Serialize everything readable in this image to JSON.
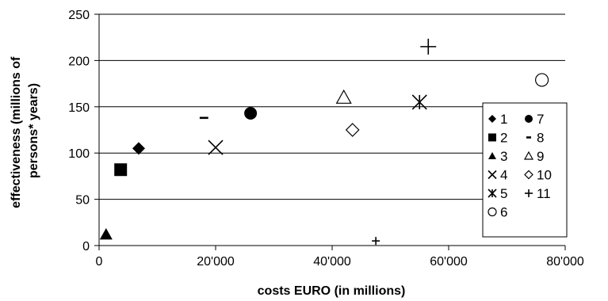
{
  "chart_data": {
    "type": "scatter",
    "title": "",
    "xlabel": "costs EURO (in millions)",
    "ylabel_lines": [
      "effectiveness (millions of",
      "persons* years)"
    ],
    "xlim": [
      0,
      80000
    ],
    "ylim": [
      0,
      250
    ],
    "x_ticks": [
      {
        "value": 0,
        "label": "0"
      },
      {
        "value": 20000,
        "label": "20'000"
      },
      {
        "value": 40000,
        "label": "40'000"
      },
      {
        "value": 60000,
        "label": "60'000"
      },
      {
        "value": 80000,
        "label": "80'000"
      }
    ],
    "y_ticks": [
      {
        "value": 0,
        "label": "0"
      },
      {
        "value": 50,
        "label": "50"
      },
      {
        "value": 100,
        "label": "100"
      },
      {
        "value": 150,
        "label": "150"
      },
      {
        "value": 200,
        "label": "200"
      },
      {
        "value": 250,
        "label": "250"
      }
    ],
    "grid": "horizontal",
    "legend_position": "right",
    "series": [
      {
        "name": "1",
        "marker": "diamond-filled",
        "x": 6800,
        "y": 105
      },
      {
        "name": "2",
        "marker": "square-filled",
        "x": 3700,
        "y": 82
      },
      {
        "name": "3",
        "marker": "triangle-filled",
        "x": 1200,
        "y": 12
      },
      {
        "name": "4",
        "marker": "x",
        "x": 20000,
        "y": 106
      },
      {
        "name": "5",
        "marker": "asterisk",
        "x": 55000,
        "y": 155
      },
      {
        "name": "6",
        "marker": "circle-open",
        "x": 76000,
        "y": 179
      },
      {
        "name": "7",
        "marker": "circle-filled",
        "x": 26000,
        "y": 143
      },
      {
        "name": "8",
        "marker": "dash",
        "x": 18000,
        "y": 138
      },
      {
        "name": "9",
        "marker": "triangle-open",
        "x": 42000,
        "y": 160
      },
      {
        "name": "10",
        "marker": "diamond-open",
        "x": 43500,
        "y": 125
      },
      {
        "name": "11",
        "marker": "plus",
        "x": 56500,
        "y": 215
      }
    ],
    "extra_marks": [
      {
        "marker": "plus",
        "x": 47500,
        "y": 5
      }
    ],
    "colors": {
      "marker": "#000000",
      "gridline": "#000000",
      "background": "#ffffff"
    }
  }
}
